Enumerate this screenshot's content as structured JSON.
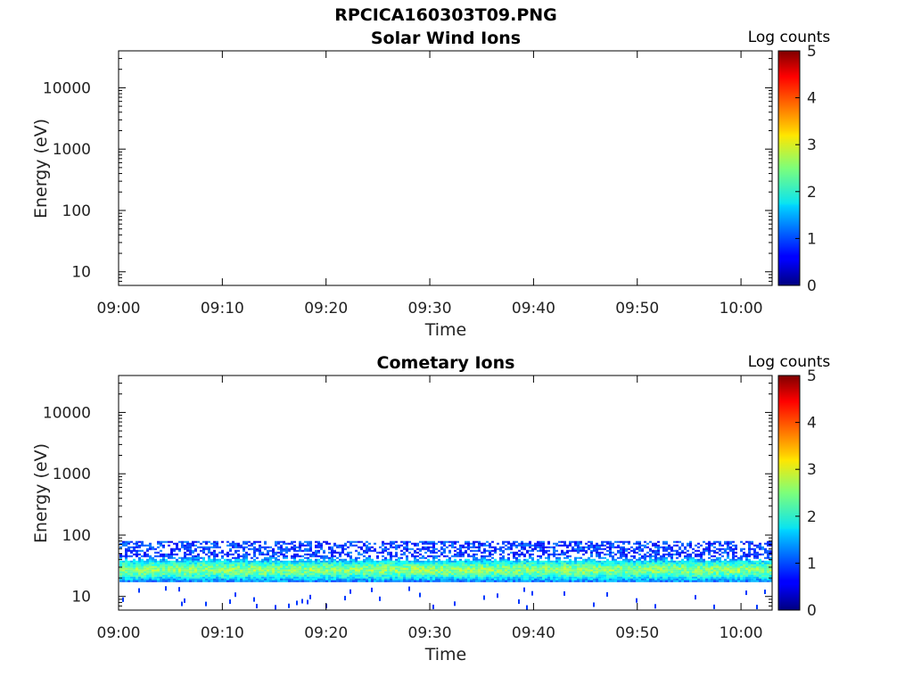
{
  "figure_title": "RPCICA160303T09.PNG",
  "chart_data": [
    {
      "type": "heatmap",
      "title": "Solar Wind Ions",
      "xlabel": "Time",
      "ylabel": "Energy (eV)",
      "y_scale": "log",
      "ylim": [
        6,
        40000
      ],
      "x_range": [
        "09:00",
        "10:03"
      ],
      "x_ticks": [
        "09:00",
        "09:10",
        "09:20",
        "09:30",
        "09:40",
        "09:50",
        "10:00"
      ],
      "y_ticks": [
        "10",
        "100",
        "1000",
        "10000"
      ],
      "colorbar": {
        "label": "Log counts",
        "range": [
          0,
          5
        ],
        "ticks": [
          "0",
          "1",
          "2",
          "3",
          "4",
          "5"
        ],
        "colormap": "jet"
      },
      "band": null
    },
    {
      "type": "heatmap",
      "title": "Cometary Ions",
      "xlabel": "Time",
      "ylabel": "Energy (eV)",
      "y_scale": "log",
      "ylim": [
        6,
        40000
      ],
      "x_range": [
        "09:00",
        "10:03"
      ],
      "x_ticks": [
        "09:00",
        "09:10",
        "09:20",
        "09:30",
        "09:40",
        "09:50",
        "10:00"
      ],
      "y_ticks": [
        "10",
        "100",
        "1000",
        "10000"
      ],
      "colorbar": {
        "label": "Log counts",
        "range": [
          0,
          5
        ],
        "ticks": [
          "0",
          "1",
          "2",
          "3",
          "4",
          "5"
        ],
        "colormap": "jet"
      },
      "band": {
        "energy_min_eV": 18,
        "energy_max_eV": 80,
        "peak_energy_eV": 28,
        "peak_log_counts": 3
      }
    }
  ]
}
